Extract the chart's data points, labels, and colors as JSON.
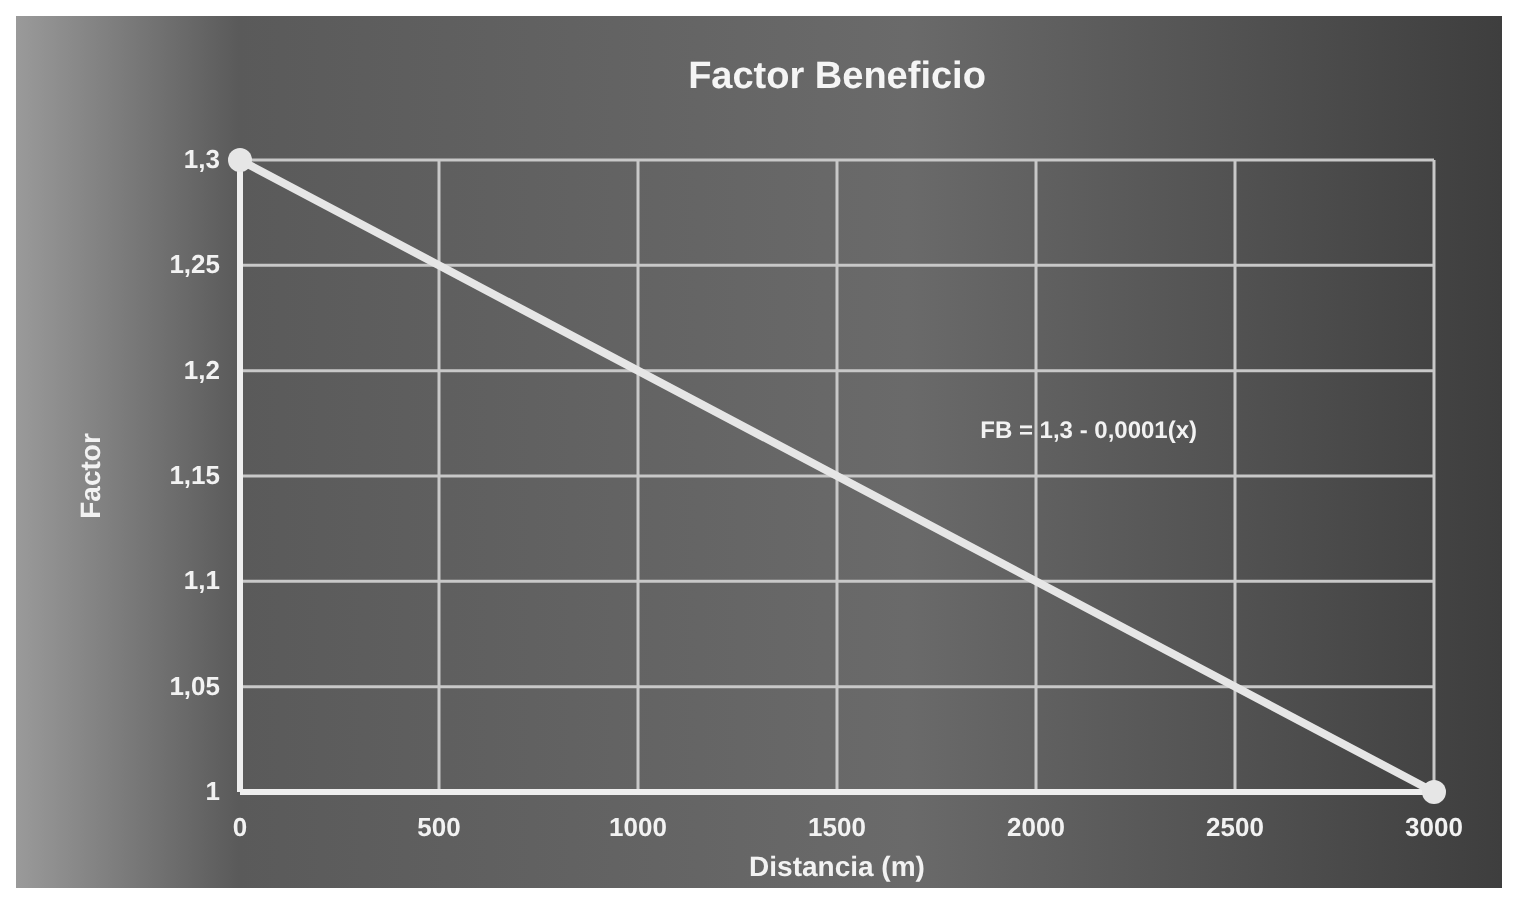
{
  "chart_data": {
    "type": "line",
    "title": "Factor Beneficio",
    "xlabel": "Distancia (m)",
    "ylabel": "Factor",
    "x": [
      0,
      3000
    ],
    "values": [
      1.3,
      1
    ],
    "color": "#e6e6e6",
    "marker": "circle",
    "line_style": "solid",
    "xlim": [
      0,
      3000
    ],
    "xticks": [
      0,
      500,
      1000,
      1500,
      2000,
      2500,
      3000
    ],
    "ylim": [
      1,
      1.3
    ],
    "yticks": [
      {
        "value": 1,
        "label": "1"
      },
      {
        "value": 1.05,
        "label": "1,05"
      },
      {
        "value": 1.1,
        "label": "1,1"
      },
      {
        "value": 1.15,
        "label": "1,15"
      },
      {
        "value": 1.2,
        "label": "1,2"
      },
      {
        "value": 1.25,
        "label": "1,25"
      },
      {
        "value": 1.3,
        "label": "1,3"
      }
    ],
    "grid": true,
    "annotations": [
      "FB = 1,3 - 0,0001(x)"
    ]
  }
}
